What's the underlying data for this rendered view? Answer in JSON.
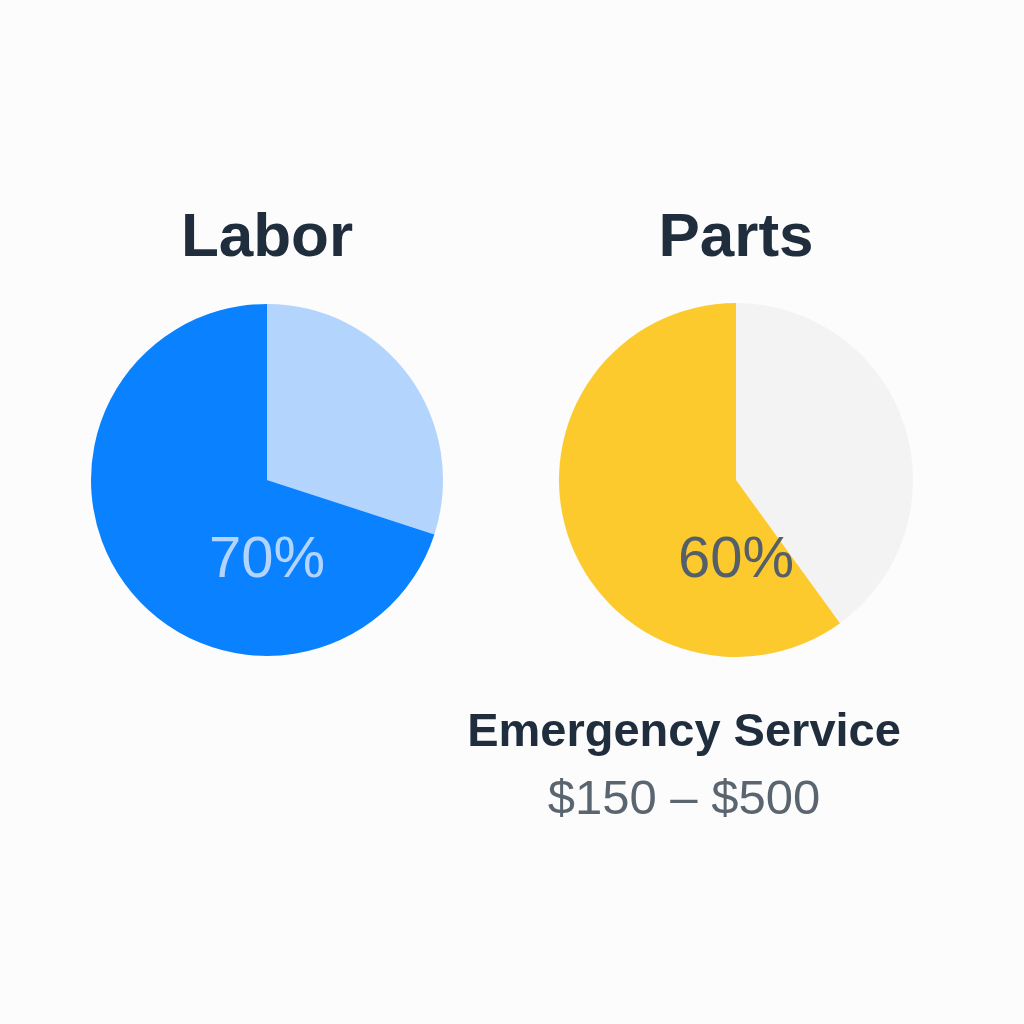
{
  "chart_data": [
    {
      "type": "pie",
      "title": "Labor",
      "categories": [
        null,
        null
      ],
      "values": [
        30,
        70
      ],
      "colors": [
        "#b3d4fc",
        "#0a82ff"
      ],
      "value_labels": [
        null,
        "70%"
      ]
    },
    {
      "type": "pie",
      "title": "Parts",
      "categories": [
        null,
        null
      ],
      "values": [
        40,
        60
      ],
      "colors": [
        "#f3f3f3",
        "#fdca2e"
      ],
      "value_labels": [
        null,
        "60%"
      ]
    },
    {
      "type": "other",
      "title": "Emergency Service",
      "subtitle": "$150 – $500"
    }
  ]
}
